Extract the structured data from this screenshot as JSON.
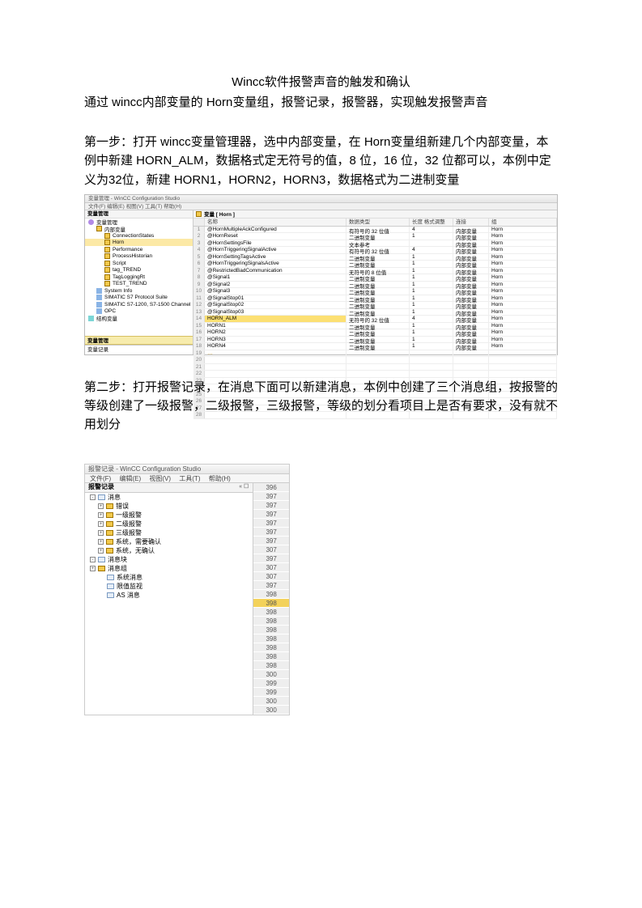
{
  "title": "Wincc软件报警声音的触发和确认",
  "subtitle": "通过 wincc内部变量的 Horn变量组，报警记录，报警器，实现触发报警声音",
  "para1": "第一步：打开 wincc变量管理器，选中内部变量，在 Horn变量组新建几个内部变量，本例中新建 HORN_ALM，数据格式定无符号的值，8 位，16 位，32 位都可以，本例中定义为32位，新建 HORN1，HORN2，HORN3，数据格式为二进制变量",
  "para2": "第二步：打开报警记录，在消息下面可以新建消息，本例中创建了三个消息组，按报警的等级创建了一级报警，二级报警，三级报警，等级的划分看项目上是否有要求，没有就不用划分",
  "shot1": {
    "window_title": "变量管理 - WinCC Configuration Studio",
    "menu": "文件(F)  编辑(E)  视图(V)  工具(T)  帮助(H)",
    "tree_header": "变量管理",
    "tree": [
      {
        "icon": "ic-purple",
        "label": "变量管理",
        "d": 0
      },
      {
        "icon": "ic-folder",
        "label": "内部变量",
        "d": 1
      },
      {
        "icon": "ic-folder",
        "label": "ConnectionStates",
        "d": 2
      },
      {
        "icon": "ic-folder",
        "label": "Horn",
        "d": 2,
        "sel": true
      },
      {
        "icon": "ic-folder",
        "label": "Performance",
        "d": 2
      },
      {
        "icon": "ic-folder",
        "label": "ProcessHistorian",
        "d": 2
      },
      {
        "icon": "ic-folder",
        "label": "Script",
        "d": 2
      },
      {
        "icon": "ic-folder",
        "label": "tag_TREND",
        "d": 2
      },
      {
        "icon": "ic-folder",
        "label": "TagLoggingRt",
        "d": 2
      },
      {
        "icon": "ic-folder",
        "label": "TEST_TREND",
        "d": 2
      },
      {
        "icon": "ic-blue",
        "label": "System Info",
        "d": 1
      },
      {
        "icon": "ic-blue",
        "label": "SIMATIC S7 Protocol Suite",
        "d": 1
      },
      {
        "icon": "ic-blue",
        "label": "SIMATIC S7-1200, S7-1500 Channel",
        "d": 1
      },
      {
        "icon": "ic-blue",
        "label": "OPC",
        "d": 1
      },
      {
        "icon": "ic-cyan",
        "label": "结构变量",
        "d": 0
      }
    ],
    "section_label": "变量管理",
    "bottom_label": "变量记录",
    "grid_title": "变量 [ Horn ]",
    "columns": {
      "name": "名称",
      "type": "数据类型",
      "len": "长度 格式调整",
      "conn": "连接",
      "grp": "组"
    },
    "rows": [
      {
        "name": "@HornMultipleAckConfigured",
        "type": "有符号的 32 位值",
        "len": "4",
        "conn": "内部变量",
        "grp": "Horn"
      },
      {
        "name": "@HornReset",
        "type": "二进制变量",
        "len": "1",
        "conn": "内部变量",
        "grp": "Horn"
      },
      {
        "name": "@HornSettingsFile",
        "type": "文本参考",
        "len": "",
        "conn": "内部变量",
        "grp": "Horn"
      },
      {
        "name": "@HornTriggeringSignalActive",
        "type": "有符号的 32 位值",
        "len": "4",
        "conn": "内部变量",
        "grp": "Horn"
      },
      {
        "name": "@HornSettingTagsActive",
        "type": "二进制变量",
        "len": "1",
        "conn": "内部变量",
        "grp": "Horn"
      },
      {
        "name": "@HornTriggeringSignalsActive",
        "type": "二进制变量",
        "len": "1",
        "conn": "内部变量",
        "grp": "Horn"
      },
      {
        "name": "@RestrictedBadCommunication",
        "type": "无符号的 8 位值",
        "len": "1",
        "conn": "内部变量",
        "grp": "Horn"
      },
      {
        "name": "@Signal1",
        "type": "二进制变量",
        "len": "1",
        "conn": "内部变量",
        "grp": "Horn"
      },
      {
        "name": "@Signal2",
        "type": "二进制变量",
        "len": "1",
        "conn": "内部变量",
        "grp": "Horn"
      },
      {
        "name": "@Signal3",
        "type": "二进制变量",
        "len": "1",
        "conn": "内部变量",
        "grp": "Horn"
      },
      {
        "name": "@SignalStop01",
        "type": "二进制变量",
        "len": "1",
        "conn": "内部变量",
        "grp": "Horn"
      },
      {
        "name": "@SignalStop02",
        "type": "二进制变量",
        "len": "1",
        "conn": "内部变量",
        "grp": "Horn"
      },
      {
        "name": "@SignalStop03",
        "type": "二进制变量",
        "len": "1",
        "conn": "内部变量",
        "grp": "Horn"
      },
      {
        "name": "HORN_ALM",
        "type": "无符号的 32 位值",
        "len": "4",
        "conn": "内部变量",
        "grp": "Horn",
        "sel": true
      },
      {
        "name": "HORN1",
        "type": "二进制变量",
        "len": "1",
        "conn": "内部变量",
        "grp": "Horn"
      },
      {
        "name": "HORN2",
        "type": "二进制变量",
        "len": "1",
        "conn": "内部变量",
        "grp": "Horn"
      },
      {
        "name": "HORN3",
        "type": "二进制变量",
        "len": "1",
        "conn": "内部变量",
        "grp": "Horn"
      },
      {
        "name": "HORN4",
        "type": "二进制变量",
        "len": "1",
        "conn": "内部变量",
        "grp": "Horn"
      }
    ],
    "empty_rows": 10
  },
  "shot2": {
    "window_title": "报警记录 - WinCC Configuration Studio",
    "menus": [
      "文件(F)",
      "编辑(E)",
      "视图(V)",
      "工具(T)",
      "帮助(H)"
    ],
    "tree_header": "报警记录",
    "tree": [
      {
        "box": "-",
        "icon": "card",
        "label": "消息",
        "d": 0
      },
      {
        "box": "+",
        "icon": "folder",
        "label": "错误",
        "d": 1
      },
      {
        "box": "+",
        "icon": "folder",
        "label": "一级报警",
        "d": 1
      },
      {
        "box": "+",
        "icon": "folder",
        "label": "二级报警",
        "d": 1
      },
      {
        "box": "+",
        "icon": "folder",
        "label": "三级报警",
        "d": 1
      },
      {
        "box": "+",
        "icon": "folder",
        "label": "系统，需要确认",
        "d": 1
      },
      {
        "box": "+",
        "icon": "folder",
        "label": "系统，无确认",
        "d": 1
      },
      {
        "box": "-",
        "icon": "card",
        "label": "消息块",
        "d": 0
      },
      {
        "box": "+",
        "icon": "folder",
        "label": "消息组",
        "d": 0
      },
      {
        "box": "",
        "icon": "card",
        "label": "系统消息",
        "d": 1
      },
      {
        "box": "",
        "icon": "card",
        "label": "限值监视",
        "d": 1
      },
      {
        "box": "",
        "icon": "card",
        "label": "AS 消息",
        "d": 1
      }
    ],
    "numbers": [
      396,
      397,
      397,
      397,
      397,
      397,
      397,
      307,
      397,
      307,
      307,
      397,
      398,
      398,
      398,
      398,
      398,
      398,
      398,
      398,
      398,
      300,
      399,
      399,
      300,
      300
    ],
    "highlight_index": 13
  },
  "colors": {
    "highlight_bg": "#fce073",
    "folder": "#f2c94c"
  }
}
